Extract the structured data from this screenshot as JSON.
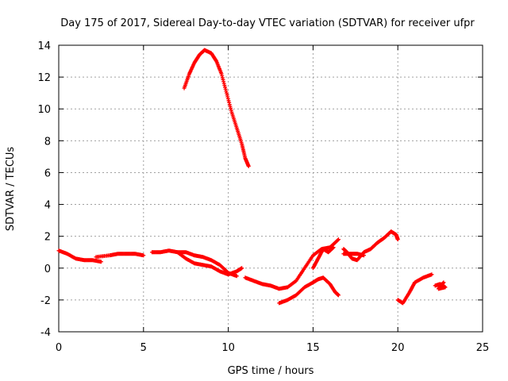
{
  "chart_data": {
    "type": "scatter",
    "title": "Day 175 of 2017, Sidereal Day-to-day VTEC variation (SDTVAR) for receiver ufpr",
    "xlabel": "GPS time / hours",
    "ylabel": "SDTVAR / TECUs",
    "xlim": [
      0,
      25
    ],
    "ylim": [
      -4,
      14
    ],
    "xticks": [
      0,
      5,
      10,
      15,
      20,
      25
    ],
    "yticks": [
      -4,
      -2,
      0,
      2,
      4,
      6,
      8,
      10,
      12,
      14
    ],
    "xtick_labels": [
      "0",
      "5",
      "10",
      "15",
      "20",
      "25"
    ],
    "ytick_labels": [
      "-4",
      "-2",
      "0",
      "2",
      "4",
      "6",
      "8",
      "10",
      "12",
      "14"
    ],
    "grid": true,
    "marker": "+",
    "color": "#ff0000",
    "series": [
      {
        "name": "SDTVAR",
        "segments": [
          [
            [
              0.0,
              1.1
            ],
            [
              0.5,
              0.9
            ],
            [
              1.0,
              0.6
            ],
            [
              1.5,
              0.5
            ],
            [
              2.0,
              0.5
            ],
            [
              2.5,
              0.4
            ]
          ],
          [
            [
              2.2,
              0.7
            ],
            [
              3.0,
              0.8
            ],
            [
              3.5,
              0.9
            ],
            [
              4.0,
              0.9
            ],
            [
              4.5,
              0.9
            ],
            [
              5.0,
              0.8
            ]
          ],
          [
            [
              5.5,
              1.0
            ],
            [
              6.0,
              1.0
            ],
            [
              6.5,
              1.1
            ],
            [
              7.0,
              1.0
            ],
            [
              7.5,
              1.0
            ],
            [
              8.0,
              0.8
            ],
            [
              8.5,
              0.7
            ],
            [
              9.0,
              0.5
            ],
            [
              9.5,
              0.2
            ],
            [
              10.0,
              -0.3
            ],
            [
              10.5,
              -0.5
            ]
          ],
          [
            [
              7.0,
              1.0
            ],
            [
              7.5,
              0.6
            ],
            [
              8.0,
              0.3
            ],
            [
              8.5,
              0.2
            ],
            [
              9.0,
              0.1
            ],
            [
              9.5,
              -0.2
            ],
            [
              10.0,
              -0.4
            ],
            [
              10.5,
              -0.2
            ],
            [
              10.8,
              0.0
            ]
          ],
          [
            [
              7.4,
              11.3
            ],
            [
              7.7,
              12.2
            ],
            [
              8.0,
              12.9
            ],
            [
              8.3,
              13.4
            ],
            [
              8.6,
              13.7
            ],
            [
              9.0,
              13.5
            ],
            [
              9.3,
              13.0
            ],
            [
              9.6,
              12.2
            ],
            [
              9.9,
              11.0
            ],
            [
              10.2,
              9.8
            ],
            [
              10.5,
              8.8
            ],
            [
              10.8,
              7.8
            ],
            [
              11.0,
              6.9
            ],
            [
              11.2,
              6.4
            ]
          ],
          [
            [
              11.0,
              -0.6
            ],
            [
              11.5,
              -0.8
            ],
            [
              12.0,
              -1.0
            ],
            [
              12.5,
              -1.1
            ],
            [
              13.0,
              -1.3
            ],
            [
              13.5,
              -1.2
            ],
            [
              14.0,
              -0.8
            ],
            [
              14.5,
              0.0
            ],
            [
              15.0,
              0.8
            ],
            [
              15.5,
              1.2
            ],
            [
              16.0,
              1.3
            ],
            [
              16.5,
              1.8
            ]
          ],
          [
            [
              13.0,
              -2.2
            ],
            [
              13.5,
              -2.0
            ],
            [
              14.0,
              -1.7
            ],
            [
              14.5,
              -1.2
            ],
            [
              15.0,
              -0.9
            ],
            [
              15.3,
              -0.7
            ],
            [
              15.6,
              -0.6
            ],
            [
              16.0,
              -1.0
            ],
            [
              16.3,
              -1.5
            ],
            [
              16.5,
              -1.7
            ]
          ],
          [
            [
              15.0,
              0.0
            ],
            [
              15.3,
              0.6
            ],
            [
              15.6,
              1.2
            ],
            [
              15.9,
              1.0
            ],
            [
              16.2,
              1.3
            ]
          ],
          [
            [
              16.8,
              1.2
            ],
            [
              17.0,
              1.0
            ],
            [
              17.3,
              0.6
            ],
            [
              17.6,
              0.5
            ],
            [
              18.0,
              1.0
            ],
            [
              18.4,
              1.2
            ],
            [
              18.8,
              1.6
            ],
            [
              19.2,
              1.9
            ],
            [
              19.6,
              2.3
            ],
            [
              19.9,
              2.1
            ],
            [
              20.0,
              1.8
            ]
          ],
          [
            [
              16.8,
              0.9
            ],
            [
              17.2,
              0.9
            ],
            [
              17.6,
              0.9
            ],
            [
              18.0,
              0.8
            ]
          ],
          [
            [
              20.0,
              -2.0
            ],
            [
              20.3,
              -2.2
            ],
            [
              20.7,
              -1.5
            ],
            [
              21.0,
              -0.9
            ],
            [
              21.5,
              -0.6
            ],
            [
              22.0,
              -0.4
            ]
          ],
          [
            [
              22.2,
              -1.1
            ],
            [
              22.5,
              -1.0
            ],
            [
              22.8,
              -1.2
            ],
            [
              22.4,
              -1.3
            ],
            [
              22.7,
              -0.9
            ]
          ]
        ]
      }
    ]
  }
}
